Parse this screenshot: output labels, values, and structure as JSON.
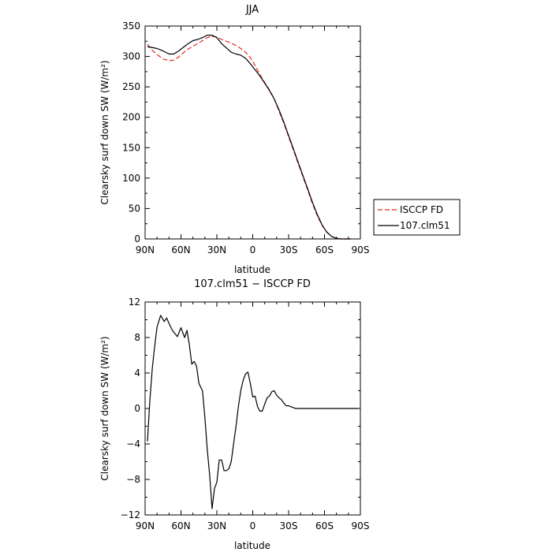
{
  "chart_data": [
    {
      "type": "line",
      "title": "JJA",
      "xlabel": "latitude",
      "ylabel": "Clearsky surf down SW (W/m²)",
      "xlim": [
        90,
        -90
      ],
      "ylim": [
        0,
        350
      ],
      "xticks": [
        90,
        60,
        30,
        0,
        -30,
        -60,
        -90
      ],
      "xtick_labels": [
        "90N",
        "60N",
        "30N",
        "0",
        "30S",
        "60S",
        "90S"
      ],
      "yticks": [
        0,
        50,
        100,
        150,
        200,
        250,
        300,
        350
      ],
      "ytick_labels": [
        "0",
        "50",
        "100",
        "150",
        "200",
        "250",
        "300",
        "350"
      ],
      "legend": "outside-right",
      "series": [
        {
          "name": "ISCCP FD",
          "color": "#e8251e",
          "dash": "dashed",
          "x": [
            88,
            85,
            80,
            75,
            70,
            66,
            62,
            58,
            54,
            50,
            46,
            42,
            38,
            34,
            30,
            26,
            22,
            18,
            14,
            10,
            6,
            2,
            -2,
            -6,
            -10,
            -14,
            -18,
            -22,
            -26,
            -30,
            -34,
            -38,
            -42,
            -46,
            -50,
            -54,
            -58,
            -62,
            -66,
            -70,
            -74,
            -78,
            -82
          ],
          "y": [
            320,
            312,
            303,
            296,
            293,
            294,
            299,
            306,
            312,
            317,
            321,
            326,
            331,
            333,
            332,
            328,
            325,
            322,
            318,
            313,
            307,
            298,
            285,
            270,
            257,
            245,
            230,
            210,
            190,
            168,
            146,
            124,
            102,
            80,
            58,
            38,
            22,
            11,
            4,
            1,
            0,
            0,
            0
          ]
        },
        {
          "name": "107.clm51",
          "color": "#000000",
          "dash": "solid",
          "x": [
            88,
            85,
            80,
            75,
            70,
            66,
            62,
            58,
            54,
            50,
            46,
            42,
            38,
            34,
            30,
            26,
            22,
            18,
            14,
            10,
            6,
            2,
            -2,
            -6,
            -10,
            -14,
            -18,
            -22,
            -26,
            -30,
            -34,
            -38,
            -42,
            -46,
            -50,
            -54,
            -58,
            -62,
            -66,
            -70,
            -74,
            -78,
            -82
          ],
          "y": [
            316,
            315,
            313,
            309,
            304,
            304,
            309,
            315,
            321,
            326,
            328,
            331,
            335,
            335,
            331,
            321,
            314,
            307,
            304,
            302,
            297,
            288,
            278,
            268,
            256,
            244,
            230,
            212,
            192,
            170,
            148,
            126,
            104,
            82,
            60,
            40,
            23,
            11,
            4,
            1,
            0,
            0,
            0
          ]
        }
      ]
    },
    {
      "type": "line",
      "title": "107.clm51 − ISCCP FD",
      "xlabel": "latitude",
      "ylabel": "Clearsky surf down SW (W/m²)",
      "xlim": [
        90,
        -90
      ],
      "ylim": [
        -12,
        12
      ],
      "xticks": [
        90,
        60,
        30,
        0,
        -30,
        -60,
        -90
      ],
      "xtick_labels": [
        "90N",
        "60N",
        "30N",
        "0",
        "30S",
        "60S",
        "90S"
      ],
      "yticks": [
        -12,
        -8,
        -4,
        0,
        4,
        8,
        12
      ],
      "ytick_labels": [
        "−12",
        "−8",
        "−4",
        "0",
        "4",
        "8",
        "12"
      ],
      "series": [
        {
          "color": "#000000",
          "dash": "solid",
          "x": [
            88,
            86,
            84,
            82,
            80,
            77,
            74,
            72,
            70,
            68,
            66,
            63,
            60,
            57,
            55,
            53,
            51,
            49,
            47,
            45,
            42,
            40,
            38,
            36,
            34,
            32,
            30,
            28,
            26,
            24,
            22,
            20,
            18,
            16,
            14,
            12,
            10,
            8,
            6,
            4,
            2,
            0,
            -2,
            -4,
            -6,
            -8,
            -10,
            -12,
            -14,
            -16,
            -18,
            -20,
            -22,
            -24,
            -26,
            -28,
            -30,
            -32,
            -34,
            -36,
            -38,
            -40,
            -42,
            -44,
            -46,
            -48,
            -50,
            -52,
            -54,
            -56,
            -58,
            -60,
            -62,
            -64,
            -66,
            -68,
            -70,
            -72,
            -74,
            -76,
            -78,
            -80,
            -82,
            -85,
            -88
          ],
          "y": [
            -3.7,
            1.0,
            4.5,
            7.0,
            9.2,
            10.5,
            9.8,
            10.2,
            9.6,
            9.0,
            8.6,
            8.1,
            9.1,
            8.0,
            8.8,
            7.2,
            5.0,
            5.3,
            4.8,
            2.8,
            2.0,
            -1.0,
            -4.7,
            -7.5,
            -11.3,
            -9.0,
            -8.3,
            -5.8,
            -5.8,
            -7.0,
            -7.0,
            -6.8,
            -6.0,
            -4.0,
            -2.0,
            0.2,
            2.0,
            3.2,
            3.9,
            4.1,
            2.8,
            1.3,
            1.4,
            0.2,
            -0.3,
            -0.3,
            0.5,
            1.2,
            1.4,
            1.9,
            2.0,
            1.5,
            1.2,
            1.0,
            0.6,
            0.3,
            0.3,
            0.2,
            0.1,
            0.0,
            0.0,
            0.0,
            0.0,
            0.0,
            0.0,
            0.0,
            0.0,
            0.0,
            0.0,
            0.0,
            0.0,
            0.0,
            0.0,
            0.0,
            0.0,
            0.0,
            0.0,
            0.0,
            0.0,
            0.0,
            0.0,
            0.0,
            0.0,
            0.0,
            0.0
          ]
        }
      ]
    }
  ]
}
